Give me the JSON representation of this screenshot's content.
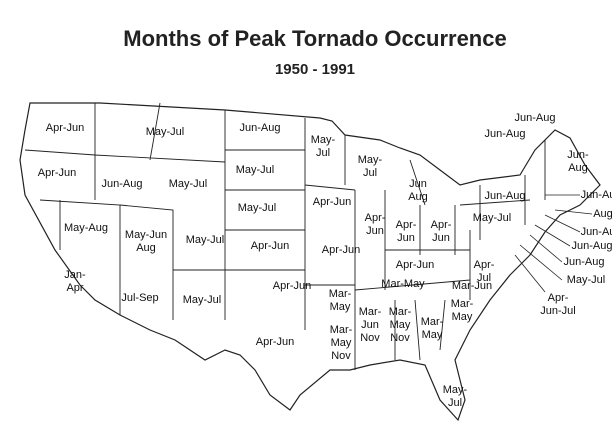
{
  "header": {
    "title": "Months of Peak Tornado Occurrence",
    "subtitle": "1950 - 1991"
  },
  "regions": [
    {
      "lines": [
        "Apr-Jun"
      ]
    },
    {
      "lines": [
        "Apr-Jun"
      ]
    },
    {
      "lines": [
        "Jan-",
        "Apr"
      ]
    },
    {
      "lines": [
        "Jun-Aug"
      ]
    },
    {
      "lines": [
        "May-Jul"
      ]
    },
    {
      "lines": [
        "May-Jul"
      ]
    },
    {
      "lines": [
        "May-Aug"
      ]
    },
    {
      "lines": [
        "May-Jun",
        "Aug"
      ]
    },
    {
      "lines": [
        "May-Jul"
      ]
    },
    {
      "lines": [
        "Jul-Sep"
      ]
    },
    {
      "lines": [
        "May-Jul"
      ]
    },
    {
      "lines": [
        "Jun-Aug"
      ]
    },
    {
      "lines": [
        "May-Jul"
      ]
    },
    {
      "lines": [
        "May-Jul"
      ]
    },
    {
      "lines": [
        "Apr-Jun"
      ]
    },
    {
      "lines": [
        "Apr-Jun"
      ]
    },
    {
      "lines": [
        "Apr-Jun"
      ]
    },
    {
      "lines": [
        "May-",
        "Jul"
      ]
    },
    {
      "lines": [
        "May-",
        "Jul"
      ]
    },
    {
      "lines": [
        "Apr-Jun"
      ]
    },
    {
      "lines": [
        "Apr-Jun"
      ]
    },
    {
      "lines": [
        "Apr-",
        "Jun"
      ]
    },
    {
      "lines": [
        "Apr-",
        "Jun"
      ]
    },
    {
      "lines": [
        "Apr-",
        "Jun"
      ]
    },
    {
      "lines": [
        "Jun",
        "Aug"
      ]
    },
    {
      "lines": [
        "Apr-Jun"
      ]
    },
    {
      "lines": [
        "Mar-May"
      ]
    },
    {
      "lines": [
        "Mar-",
        "May"
      ]
    },
    {
      "lines": [
        "Mar-",
        "May",
        "Nov"
      ]
    },
    {
      "lines": [
        "Mar-",
        "Jun",
        "Nov"
      ]
    },
    {
      "lines": [
        "Mar-",
        "May",
        "Nov"
      ]
    },
    {
      "lines": [
        "Mar-",
        "May"
      ]
    },
    {
      "lines": [
        "Mar-",
        "May"
      ]
    },
    {
      "lines": [
        "Mar-Jun"
      ]
    },
    {
      "lines": [
        "Apr-",
        "Jul"
      ]
    },
    {
      "lines": [
        "May-",
        "Jul"
      ]
    },
    {
      "lines": [
        "May-Jul"
      ]
    },
    {
      "lines": [
        "Jun-Aug"
      ]
    },
    {
      "lines": [
        "Jun-Aug"
      ]
    },
    {
      "lines": [
        "Jun-Aug"
      ]
    },
    {
      "lines": [
        "Jun-",
        "Aug"
      ]
    },
    {
      "lines": [
        "Jun-Au"
      ]
    },
    {
      "lines": [
        "Aug"
      ]
    },
    {
      "lines": [
        "Jun-Au"
      ]
    },
    {
      "lines": [
        "Jun-Aug"
      ]
    },
    {
      "lines": [
        "Jun-Aug"
      ]
    },
    {
      "lines": [
        "May-Jul"
      ]
    },
    {
      "lines": [
        "Apr-",
        "Jun-Jul"
      ]
    }
  ]
}
